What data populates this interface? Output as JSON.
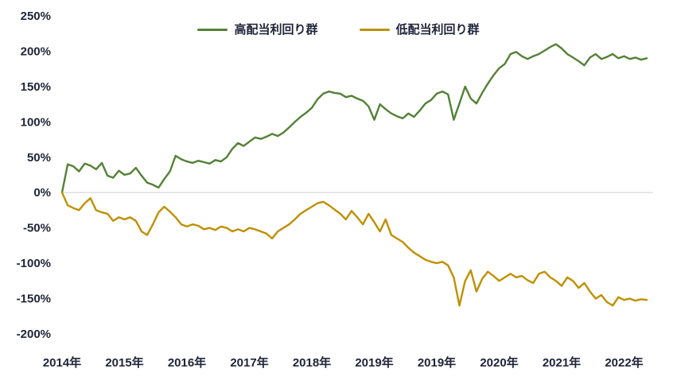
{
  "chart_data": {
    "type": "line",
    "title": "",
    "legend_position": "top",
    "grid": "zero-line-only",
    "ylim": [
      -200,
      250
    ],
    "ylabel": "",
    "xlabel": "",
    "text_color": "#20253a",
    "grid_color": "#d9d9d9",
    "y_ticks": [
      {
        "label": "250%",
        "value": 250
      },
      {
        "label": "200%",
        "value": 200
      },
      {
        "label": "150%",
        "value": 150
      },
      {
        "label": "100%",
        "value": 100
      },
      {
        "label": "50%",
        "value": 50
      },
      {
        "label": "0%",
        "value": 0
      },
      {
        "label": "-50%",
        "value": -50
      },
      {
        "label": "-100%",
        "value": -100
      },
      {
        "label": "-150%",
        "value": -150
      },
      {
        "label": "-200%",
        "value": -200
      }
    ],
    "x_ticks": [
      "2014年",
      "2015年",
      "2016年",
      "2017年",
      "2018年",
      "2019年",
      "2019年",
      "2020年",
      "2021年",
      "2022年"
    ],
    "x_note": "monthly cumulative return, 2014 through mid-2022",
    "series": [
      {
        "name": "高配当利回り群",
        "color": "#538135",
        "values": [
          0,
          40,
          37,
          30,
          41,
          38,
          33,
          42,
          24,
          21,
          31,
          25,
          27,
          35,
          24,
          14,
          11,
          7,
          19,
          30,
          52,
          47,
          44,
          42,
          45,
          43,
          41,
          46,
          44,
          50,
          62,
          70,
          66,
          72,
          78,
          76,
          79,
          83,
          80,
          85,
          92,
          100,
          107,
          113,
          120,
          132,
          140,
          143,
          141,
          140,
          135,
          137,
          133,
          130,
          122,
          103,
          125,
          118,
          112,
          108,
          105,
          112,
          107,
          116,
          126,
          131,
          140,
          143,
          139,
          103,
          126,
          150,
          133,
          126,
          141,
          154,
          166,
          176,
          182,
          196,
          199,
          193,
          189,
          193,
          196,
          201,
          206,
          210,
          204,
          196,
          191,
          186,
          180,
          191,
          196,
          189,
          192,
          196,
          190,
          193,
          189,
          191,
          188,
          190
        ]
      },
      {
        "name": "低配当利回り群",
        "color": "#BF9000",
        "values": [
          0,
          -18,
          -22,
          -25,
          -15,
          -8,
          -25,
          -28,
          -30,
          -40,
          -35,
          -38,
          -35,
          -40,
          -55,
          -60,
          -45,
          -28,
          -20,
          -27,
          -35,
          -45,
          -48,
          -45,
          -47,
          -52,
          -50,
          -53,
          -48,
          -50,
          -55,
          -52,
          -55,
          -50,
          -52,
          -55,
          -58,
          -65,
          -55,
          -50,
          -45,
          -38,
          -30,
          -25,
          -20,
          -15,
          -13,
          -18,
          -24,
          -30,
          -38,
          -26,
          -35,
          -45,
          -30,
          -42,
          -55,
          -38,
          -60,
          -65,
          -70,
          -78,
          -85,
          -90,
          -95,
          -98,
          -100,
          -98,
          -103,
          -120,
          -160,
          -125,
          -110,
          -140,
          -122,
          -112,
          -118,
          -125,
          -120,
          -115,
          -120,
          -118,
          -124,
          -128,
          -115,
          -112,
          -120,
          -125,
          -132,
          -120,
          -125,
          -135,
          -128,
          -140,
          -150,
          -145,
          -155,
          -160,
          -148,
          -152,
          -150,
          -153,
          -151,
          -152
        ]
      }
    ]
  }
}
